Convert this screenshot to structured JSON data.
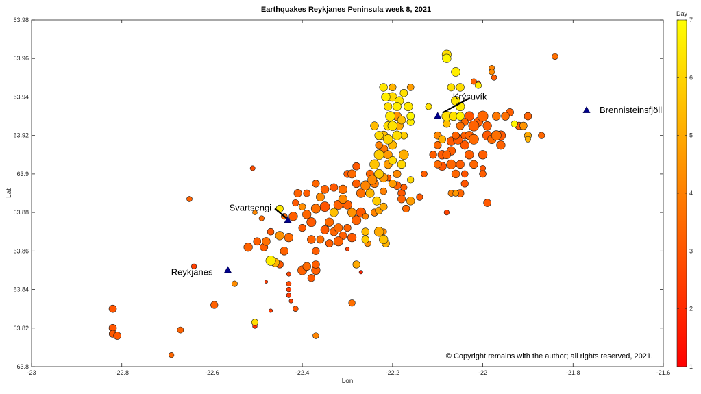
{
  "chart_data": {
    "type": "scatter",
    "title": "Earthquakes Reykjanes Peninsula week 8, 2021",
    "xlabel": "Lon",
    "ylabel": "Lat",
    "xlim": [
      -23,
      -21.6
    ],
    "ylim": [
      63.8,
      63.98
    ],
    "x_ticks": [
      -23,
      -22.8,
      -22.6,
      -22.4,
      -22.2,
      -22,
      -21.8,
      -21.6
    ],
    "x_tick_labels": [
      "-23",
      "-22.8",
      "-22.6",
      "-22.4",
      "-22.2",
      "-22",
      "-21.8",
      "-21.6"
    ],
    "y_ticks": [
      63.8,
      63.82,
      63.84,
      63.86,
      63.88,
      63.9,
      63.92,
      63.94,
      63.96,
      63.98
    ],
    "y_tick_labels": [
      "63.8",
      "63.82",
      "63.84",
      "63.86",
      "63.88",
      "63.9",
      "63.92",
      "63.94",
      "63.96",
      "63.98"
    ],
    "colorbar": {
      "label": "Day",
      "range": [
        1,
        7
      ],
      "ticks": [
        1,
        2,
        3,
        4,
        5,
        6,
        7
      ],
      "tick_labels": [
        "1",
        "2",
        "3",
        "4",
        "5",
        "6",
        "7"
      ],
      "colormap": "autumn",
      "color_low": "#ff0000",
      "color_high": "#ffff00"
    },
    "sites": [
      {
        "name": "Reykjanes",
        "lon": -22.565,
        "lat": 63.85
      },
      {
        "name": "Svartsengi",
        "lon": -22.432,
        "lat": 63.876
      },
      {
        "name": "Krýsuvík",
        "lon": -22.1,
        "lat": 63.93
      },
      {
        "name": "Brennisteinsfjöll",
        "lon": -21.77,
        "lat": 63.933
      }
    ],
    "copyright": "© Copyright remains with the author; all rights reserved, 2021.",
    "marker_color": "#00008b",
    "events": [
      [
        -22.82,
        63.83,
        3.0,
        2.6
      ],
      [
        -22.82,
        63.82,
        3.0,
        2.6
      ],
      [
        -22.82,
        63.817,
        3.1,
        2.5
      ],
      [
        -22.81,
        63.816,
        3.1,
        2.6
      ],
      [
        -22.69,
        63.806,
        3.4,
        1.8
      ],
      [
        -22.67,
        63.819,
        3.3,
        2.2
      ],
      [
        -22.65,
        63.887,
        3.3,
        1.9
      ],
      [
        -22.64,
        63.852,
        2.5,
        1.8
      ],
      [
        -22.595,
        63.832,
        3.3,
        2.5
      ],
      [
        -22.55,
        63.843,
        4.3,
        2.0
      ],
      [
        -22.51,
        63.903,
        2.8,
        1.7
      ],
      [
        -22.505,
        63.823,
        6.2,
        2.3
      ],
      [
        -22.505,
        63.821,
        2.1,
        1.6
      ],
      [
        -22.48,
        63.844,
        2.4,
        1.1
      ],
      [
        -22.47,
        63.829,
        2.4,
        1.3
      ],
      [
        -22.37,
        63.816,
        4.1,
        2.1
      ],
      [
        -22.27,
        63.849,
        1.8,
        1.3
      ],
      [
        -22.29,
        63.833,
        3.6,
        2.3
      ],
      [
        -22.28,
        63.853,
        5.0,
        2.5
      ],
      [
        -22.43,
        63.843,
        2.7,
        1.7
      ],
      [
        -22.43,
        63.84,
        2.4,
        1.6
      ],
      [
        -22.43,
        63.837,
        2.3,
        1.6
      ],
      [
        -22.425,
        63.834,
        2.5,
        1.4
      ],
      [
        -22.43,
        63.848,
        2.6,
        1.5
      ],
      [
        -22.4,
        63.85,
        3.3,
        3.2
      ],
      [
        -22.37,
        63.85,
        3.2,
        3.0
      ],
      [
        -22.38,
        63.846,
        3.1,
        2.5
      ],
      [
        -22.39,
        63.852,
        3.5,
        2.8
      ],
      [
        -22.37,
        63.853,
        3.2,
        2.6
      ],
      [
        -22.415,
        63.83,
        3.0,
        1.9
      ],
      [
        -22.5,
        63.865,
        3.2,
        2.6
      ],
      [
        -22.48,
        63.865,
        3.6,
        2.8
      ],
      [
        -22.47,
        63.855,
        6.6,
        3.4
      ],
      [
        -22.46,
        63.854,
        5.2,
        2.9
      ],
      [
        -22.45,
        63.853,
        3.1,
        2.5
      ],
      [
        -22.44,
        63.86,
        3.3,
        2.8
      ],
      [
        -22.43,
        63.867,
        3.5,
        3.0
      ],
      [
        -22.45,
        63.868,
        4.4,
        3.0
      ],
      [
        -22.47,
        63.87,
        3.0,
        2.4
      ],
      [
        -22.52,
        63.862,
        3.3,
        3.0
      ],
      [
        -22.485,
        63.862,
        3.2,
        2.7
      ],
      [
        -22.505,
        63.88,
        4.2,
        1.6
      ],
      [
        -22.49,
        63.877,
        3.5,
        1.8
      ],
      [
        -22.45,
        63.882,
        6.5,
        2.5
      ],
      [
        -22.44,
        63.878,
        3.6,
        2.1
      ],
      [
        -22.42,
        63.878,
        3.2,
        3.0
      ],
      [
        -22.415,
        63.885,
        3.1,
        2.3
      ],
      [
        -22.41,
        63.89,
        3.3,
        2.7
      ],
      [
        -22.4,
        63.883,
        4.3,
        2.4
      ],
      [
        -22.39,
        63.879,
        3.4,
        3.0
      ],
      [
        -22.38,
        63.875,
        3.1,
        3.2
      ],
      [
        -22.37,
        63.882,
        3.6,
        3.2
      ],
      [
        -22.36,
        63.888,
        4.2,
        2.9
      ],
      [
        -22.35,
        63.883,
        3.0,
        3.4
      ],
      [
        -22.34,
        63.875,
        3.5,
        3.0
      ],
      [
        -22.33,
        63.88,
        5.5,
        2.9
      ],
      [
        -22.32,
        63.884,
        3.3,
        3.2
      ],
      [
        -22.31,
        63.887,
        4.2,
        3.0
      ],
      [
        -22.3,
        63.884,
        3.2,
        3.1
      ],
      [
        -22.29,
        63.88,
        4.4,
        3.0
      ],
      [
        -22.28,
        63.876,
        3.3,
        3.2
      ],
      [
        -22.27,
        63.88,
        3.1,
        3.3
      ],
      [
        -22.4,
        63.872,
        3.1,
        2.5
      ],
      [
        -22.38,
        63.866,
        3.3,
        2.8
      ],
      [
        -22.37,
        63.86,
        3.2,
        2.5
      ],
      [
        -22.36,
        63.866,
        3.6,
        2.6
      ],
      [
        -22.35,
        63.871,
        3.1,
        2.9
      ],
      [
        -22.34,
        63.864,
        3.2,
        2.6
      ],
      [
        -22.33,
        63.87,
        3.4,
        2.8
      ],
      [
        -22.32,
        63.872,
        3.5,
        2.9
      ],
      [
        -22.31,
        63.868,
        3.2,
        2.7
      ],
      [
        -22.3,
        63.872,
        3.3,
        2.5
      ],
      [
        -22.29,
        63.867,
        3.1,
        3.0
      ],
      [
        -22.32,
        63.865,
        3.3,
        3.2
      ],
      [
        -22.3,
        63.861,
        2.5,
        1.4
      ],
      [
        -22.26,
        63.87,
        5.4,
        2.6
      ],
      [
        -22.26,
        63.866,
        5.8,
        2.5
      ],
      [
        -22.255,
        63.864,
        4.3,
        2.3
      ],
      [
        -22.26,
        63.878,
        4.0,
        2.1
      ],
      [
        -22.28,
        63.895,
        3.2,
        2.8
      ],
      [
        -22.27,
        63.89,
        3.6,
        3.1
      ],
      [
        -22.26,
        63.894,
        4.1,
        3.3
      ],
      [
        -22.25,
        63.89,
        5.3,
        3.0
      ],
      [
        -22.245,
        63.897,
        4.2,
        3.2
      ],
      [
        -22.235,
        63.886,
        5.8,
        2.9
      ],
      [
        -22.23,
        63.881,
        4.8,
        2.5
      ],
      [
        -22.22,
        63.891,
        4.0,
        2.4
      ],
      [
        -22.21,
        63.898,
        3.1,
        2.2
      ],
      [
        -22.2,
        63.895,
        4.7,
        2.7
      ],
      [
        -22.19,
        63.894,
        3.3,
        2.8
      ],
      [
        -22.18,
        63.887,
        3.3,
        2.7
      ],
      [
        -22.175,
        63.893,
        3.2,
        2.3
      ],
      [
        -22.2,
        63.907,
        6.1,
        2.8
      ],
      [
        -22.25,
        63.9,
        3.4,
        2.7
      ],
      [
        -22.3,
        63.9,
        3.2,
        2.5
      ],
      [
        -22.31,
        63.892,
        3.6,
        3.0
      ],
      [
        -22.33,
        63.893,
        3.1,
        2.7
      ],
      [
        -22.35,
        63.892,
        3.3,
        2.8
      ],
      [
        -22.37,
        63.895,
        3.4,
        2.5
      ],
      [
        -22.39,
        63.89,
        3.2,
        2.4
      ],
      [
        -22.28,
        63.904,
        3.1,
        2.6
      ],
      [
        -22.29,
        63.9,
        3.5,
        2.9
      ],
      [
        -22.24,
        63.905,
        5.6,
        3.3
      ],
      [
        -22.23,
        63.91,
        5.8,
        3.4
      ],
      [
        -22.23,
        63.915,
        4.0,
        2.5
      ],
      [
        -22.22,
        63.92,
        5.5,
        3.1
      ],
      [
        -22.21,
        63.918,
        6.0,
        3.3
      ],
      [
        -22.22,
        63.913,
        3.8,
        3.0
      ],
      [
        -22.21,
        63.91,
        4.6,
        2.9
      ],
      [
        -22.2,
        63.915,
        5.3,
        3.0
      ],
      [
        -22.19,
        63.92,
        6.2,
        3.2
      ],
      [
        -22.185,
        63.925,
        5.0,
        2.8
      ],
      [
        -22.2,
        63.925,
        6.3,
        3.3
      ],
      [
        -22.205,
        63.93,
        6.4,
        3.3
      ],
      [
        -22.21,
        63.935,
        6.2,
        2.7
      ],
      [
        -22.215,
        63.94,
        6.6,
        3.0
      ],
      [
        -22.22,
        63.945,
        6.4,
        2.8
      ],
      [
        -22.2,
        63.94,
        6.1,
        3.1
      ],
      [
        -22.19,
        63.935,
        6.6,
        2.9
      ],
      [
        -22.18,
        63.928,
        5.5,
        2.8
      ],
      [
        -22.175,
        63.92,
        5.8,
        2.6
      ],
      [
        -22.2,
        63.945,
        5.2,
        2.5
      ],
      [
        -22.185,
        63.938,
        6.4,
        3.0
      ],
      [
        -22.175,
        63.942,
        6.3,
        2.6
      ],
      [
        -22.19,
        63.93,
        4.4,
        3.0
      ],
      [
        -22.175,
        63.91,
        5.1,
        3.3
      ],
      [
        -22.18,
        63.905,
        6.0,
        2.8
      ],
      [
        -22.21,
        63.905,
        4.7,
        2.9
      ],
      [
        -22.19,
        63.9,
        4.2,
        2.7
      ],
      [
        -22.22,
        63.898,
        4.6,
        3.0
      ],
      [
        -22.23,
        63.9,
        5.7,
        3.2
      ],
      [
        -22.24,
        63.895,
        3.8,
        2.8
      ],
      [
        -22.165,
        63.935,
        6.4,
        3.0
      ],
      [
        -22.16,
        63.945,
        4.7,
        2.4
      ],
      [
        -22.16,
        63.927,
        6.6,
        2.5
      ],
      [
        -22.16,
        63.93,
        6.8,
        2.6
      ],
      [
        -22.24,
        63.88,
        4.1,
        2.5
      ],
      [
        -22.22,
        63.883,
        5.0,
        2.6
      ],
      [
        -22.22,
        63.87,
        4.3,
        2.2
      ],
      [
        -22.23,
        63.87,
        5.0,
        3.3
      ],
      [
        -22.22,
        63.866,
        5.6,
        3.0
      ],
      [
        -22.215,
        63.864,
        5.2,
        2.6
      ],
      [
        -22.23,
        63.92,
        6.1,
        3.0
      ],
      [
        -22.24,
        63.925,
        5.4,
        2.8
      ],
      [
        -22.21,
        63.925,
        6.2,
        3.0
      ],
      [
        -22.16,
        63.897,
        6.1,
        2.3
      ],
      [
        -22.12,
        63.935,
        6.3,
        2.2
      ],
      [
        -22.13,
        63.9,
        3.2,
        2.2
      ],
      [
        -22.14,
        63.888,
        3.1,
        2.3
      ],
      [
        -22.16,
        63.886,
        4.7,
        2.8
      ],
      [
        -22.18,
        63.89,
        3.1,
        2.6
      ],
      [
        -22.17,
        63.882,
        3.5,
        2.5
      ],
      [
        -22.08,
        63.962,
        6.2,
        3.2
      ],
      [
        -22.08,
        63.96,
        6.8,
        3.0
      ],
      [
        -22.06,
        63.953,
        6.6,
        3.1
      ],
      [
        -22.05,
        63.945,
        6.2,
        2.8
      ],
      [
        -22.07,
        63.945,
        6.3,
        2.6
      ],
      [
        -22.06,
        63.938,
        6.4,
        3.2
      ],
      [
        -22.05,
        63.935,
        6.5,
        3.0
      ],
      [
        -22.08,
        63.93,
        6.2,
        3.4
      ],
      [
        -22.065,
        63.93,
        6.3,
        3.0
      ],
      [
        -22.05,
        63.93,
        6.7,
        2.8
      ],
      [
        -22.08,
        63.926,
        5.5,
        2.5
      ],
      [
        -22.09,
        63.918,
        5.2,
        2.6
      ],
      [
        -22.1,
        63.92,
        4.2,
        2.6
      ],
      [
        -22.1,
        63.915,
        3.5,
        2.6
      ],
      [
        -22.11,
        63.91,
        3.2,
        2.5
      ],
      [
        -22.1,
        63.905,
        3.5,
        2.6
      ],
      [
        -22.09,
        63.91,
        3.1,
        3.0
      ],
      [
        -22.09,
        63.904,
        3.0,
        2.9
      ],
      [
        -22.08,
        63.91,
        3.3,
        2.8
      ],
      [
        -22.07,
        63.905,
        3.4,
        3.2
      ],
      [
        -22.07,
        63.912,
        3.2,
        3.0
      ],
      [
        -22.07,
        63.917,
        3.1,
        3.0
      ],
      [
        -22.06,
        63.92,
        3.3,
        2.6
      ],
      [
        -22.05,
        63.925,
        3.6,
        2.7
      ],
      [
        -22.04,
        63.92,
        3.2,
        2.6
      ],
      [
        -22.04,
        63.927,
        3.4,
        2.5
      ],
      [
        -22.03,
        63.93,
        3.0,
        3.2
      ],
      [
        -22.02,
        63.925,
        3.3,
        3.6
      ],
      [
        -22.02,
        63.918,
        3.5,
        3.4
      ],
      [
        -22.01,
        63.927,
        3.2,
        3.2
      ],
      [
        -22.0,
        63.93,
        3.4,
        3.6
      ],
      [
        -21.99,
        63.925,
        3.2,
        3.0
      ],
      [
        -21.99,
        63.92,
        3.1,
        3.3
      ],
      [
        -21.98,
        63.918,
        3.5,
        3.0
      ],
      [
        -21.97,
        63.93,
        3.8,
        2.8
      ],
      [
        -21.97,
        63.92,
        3.6,
        3.4
      ],
      [
        -21.96,
        63.915,
        3.3,
        3.0
      ],
      [
        -21.96,
        63.92,
        3.1,
        3.3
      ],
      [
        -22.0,
        63.91,
        3.2,
        3.0
      ],
      [
        -22.02,
        63.905,
        3.4,
        2.8
      ],
      [
        -22.03,
        63.91,
        3.2,
        3.0
      ],
      [
        -22.04,
        63.915,
        3.1,
        3.0
      ],
      [
        -22.06,
        63.9,
        3.4,
        2.8
      ],
      [
        -22.05,
        63.905,
        3.2,
        2.8
      ],
      [
        -22.04,
        63.9,
        3.0,
        2.4
      ],
      [
        -22.07,
        63.89,
        4.0,
        2.2
      ],
      [
        -22.06,
        63.89,
        4.6,
        2.1
      ],
      [
        -22.05,
        63.89,
        3.4,
        2.6
      ],
      [
        -22.04,
        63.895,
        3.0,
        2.5
      ],
      [
        -22.0,
        63.903,
        3.0,
        2.0
      ],
      [
        -21.99,
        63.885,
        3.1,
        2.6
      ],
      [
        -22.08,
        63.88,
        2.6,
        1.8
      ],
      [
        -22.02,
        63.948,
        3.3,
        2.0
      ],
      [
        -22.01,
        63.946,
        6.5,
        2.3
      ],
      [
        -21.98,
        63.955,
        4.1,
        1.9
      ],
      [
        -21.98,
        63.953,
        4.3,
        2.0
      ],
      [
        -21.975,
        63.95,
        3.2,
        1.9
      ],
      [
        -21.95,
        63.93,
        3.6,
        2.8
      ],
      [
        -21.94,
        63.932,
        3.2,
        2.6
      ],
      [
        -21.92,
        63.925,
        3.2,
        2.6
      ],
      [
        -21.91,
        63.925,
        4.5,
        2.6
      ],
      [
        -21.9,
        63.93,
        3.3,
        2.6
      ],
      [
        -21.9,
        63.92,
        5.0,
        2.5
      ],
      [
        -21.9,
        63.918,
        5.2,
        2.0
      ],
      [
        -21.87,
        63.92,
        3.4,
        2.3
      ],
      [
        -21.93,
        63.926,
        6.8,
        2.3
      ],
      [
        -21.84,
        63.961,
        3.6,
        2.1
      ],
      [
        -22.01,
        63.947,
        2.2,
        1.8
      ],
      [
        -22.055,
        63.918,
        3.1,
        3.4
      ],
      [
        -22.03,
        63.92,
        3.3,
        3.0
      ],
      [
        -22.0,
        63.9,
        3.2,
        2.4
      ]
    ]
  }
}
